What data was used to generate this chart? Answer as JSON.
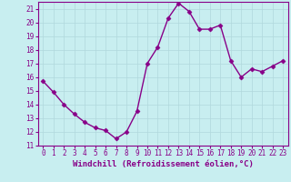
{
  "x": [
    0,
    1,
    2,
    3,
    4,
    5,
    6,
    7,
    8,
    9,
    10,
    11,
    12,
    13,
    14,
    15,
    16,
    17,
    18,
    19,
    20,
    21,
    22,
    23
  ],
  "y": [
    15.7,
    14.9,
    14.0,
    13.3,
    12.7,
    12.3,
    12.1,
    11.5,
    12.0,
    13.5,
    17.0,
    18.2,
    20.3,
    21.4,
    20.8,
    19.5,
    19.5,
    19.8,
    17.2,
    16.0,
    16.6,
    16.4,
    16.8,
    17.2
  ],
  "line_color": "#880088",
  "marker": "D",
  "marker_size": 2.5,
  "bg_color": "#c8eef0",
  "grid_color": "#b0d8dc",
  "xlabel": "Windchill (Refroidissement éolien,°C)",
  "ylim": [
    11,
    21.5
  ],
  "xlim": [
    -0.5,
    23.5
  ],
  "yticks": [
    11,
    12,
    13,
    14,
    15,
    16,
    17,
    18,
    19,
    20,
    21
  ],
  "xticks": [
    0,
    1,
    2,
    3,
    4,
    5,
    6,
    7,
    8,
    9,
    10,
    11,
    12,
    13,
    14,
    15,
    16,
    17,
    18,
    19,
    20,
    21,
    22,
    23
  ],
  "tick_label_color": "#880088",
  "tick_label_size": 5.5,
  "xlabel_size": 6.5,
  "spine_color": "#880088",
  "line_width": 1.0
}
